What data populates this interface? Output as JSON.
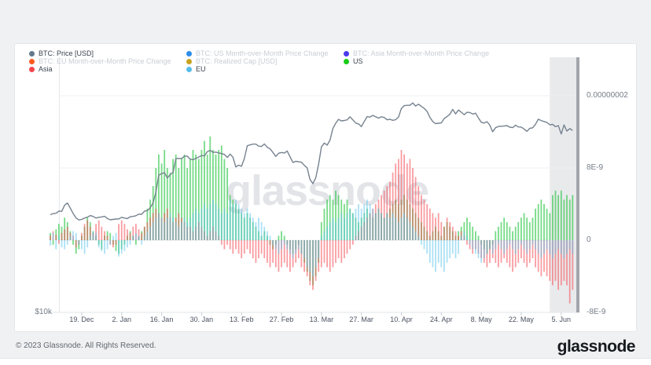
{
  "watermark": "glassnode",
  "footer": {
    "copyright": "© 2023 Glassnode. All Rights Reserved.",
    "brand": "glassnode"
  },
  "legend": {
    "items": [
      {
        "id": "btc-price",
        "label": "BTC: Price [USD]",
        "color": "#64788C",
        "active": true,
        "col": 0,
        "row": 0
      },
      {
        "id": "btc-us-mom",
        "label": "BTC: US Month-over-Month Price Change",
        "color": "#2E8DE8",
        "active": false,
        "col": 1,
        "row": 0
      },
      {
        "id": "btc-asia-mom",
        "label": "BTC: Asia Month-over-Month Price Change",
        "color": "#4A3AEE",
        "active": false,
        "col": 2,
        "row": 0
      },
      {
        "id": "btc-eu-mom",
        "label": "BTC: EU Month-over-Month Price Change",
        "color": "#FF5A1F",
        "active": false,
        "col": 0,
        "row": 1
      },
      {
        "id": "btc-realized-cap",
        "label": "BTC: Realized Cap [USD]",
        "color": "#C7A322",
        "active": false,
        "col": 1,
        "row": 1
      },
      {
        "id": "us",
        "label": "US",
        "color": "#17CC17",
        "active": true,
        "col": 2,
        "row": 1
      },
      {
        "id": "asia",
        "label": "Asia",
        "color": "#F4454D",
        "active": true,
        "col": 0,
        "row": 2
      },
      {
        "id": "eu",
        "label": "EU",
        "color": "#55BEEA",
        "active": true,
        "col": 1,
        "row": 2
      }
    ]
  },
  "chart_data": {
    "type": "mixed",
    "title": "",
    "start_date": "2022-12-08",
    "x_ticks": [
      {
        "label": "19. Dec",
        "day": 11
      },
      {
        "label": "2. Jan",
        "day": 25
      },
      {
        "label": "16. Jan",
        "day": 39
      },
      {
        "label": "30. Jan",
        "day": 53
      },
      {
        "label": "13. Feb",
        "day": 67
      },
      {
        "label": "27. Feb",
        "day": 81
      },
      {
        "label": "13. Mar",
        "day": 95
      },
      {
        "label": "27. Mar",
        "day": 109
      },
      {
        "label": "10. Apr",
        "day": 123
      },
      {
        "label": "24. Apr",
        "day": 137
      },
      {
        "label": "8. May",
        "day": 151
      },
      {
        "label": "22. May",
        "day": 165
      },
      {
        "label": "5. Jun",
        "day": 179
      }
    ],
    "right_axis": {
      "title": "Month-over-Month Price Change",
      "unit": "1e-9",
      "labels": [
        {
          "text": "0.00000002",
          "value_e9": 16
        },
        {
          "text": "8E-9",
          "value_e9": 8
        },
        {
          "text": "0",
          "value_e9": 0
        },
        {
          "text": "-8E-9",
          "value_e9": -8
        }
      ]
    },
    "left_axis": {
      "title": "BTC Price",
      "scale": "log",
      "labels": [
        {
          "text": "$10k",
          "value_usd": 10000
        }
      ]
    },
    "highlight": {
      "from_day": 175,
      "to_day": 184
    },
    "price_line": {
      "name": "BTC: Price [USD]",
      "color": "#76828F",
      "unit": "kUSD",
      "points": [
        [
          0,
          16.95
        ],
        [
          2,
          17.1
        ],
        [
          4,
          17.25
        ],
        [
          5,
          17.85
        ],
        [
          6,
          18.0
        ],
        [
          7,
          17.55
        ],
        [
          8,
          17.1
        ],
        [
          9,
          16.65
        ],
        [
          10,
          16.5
        ],
        [
          11,
          16.5
        ],
        [
          12,
          16.65
        ],
        [
          13,
          16.75
        ],
        [
          15,
          16.8
        ],
        [
          17,
          16.7
        ],
        [
          19,
          16.85
        ],
        [
          20,
          16.6
        ],
        [
          22,
          16.5
        ],
        [
          24,
          16.6
        ],
        [
          26,
          16.65
        ],
        [
          28,
          16.75
        ],
        [
          30,
          16.9
        ],
        [
          32,
          17.0
        ],
        [
          34,
          17.3
        ],
        [
          36,
          18.0
        ],
        [
          37,
          19.1
        ],
        [
          38,
          20.9
        ],
        [
          39,
          21.0
        ],
        [
          40,
          21.15
        ],
        [
          41,
          20.6
        ],
        [
          42,
          20.9
        ],
        [
          43,
          21.2
        ],
        [
          44,
          22.7
        ],
        [
          46,
          22.8
        ],
        [
          48,
          23.05
        ],
        [
          50,
          22.6
        ],
        [
          52,
          23.0
        ],
        [
          54,
          23.1
        ],
        [
          56,
          23.75
        ],
        [
          58,
          23.5
        ],
        [
          60,
          23.4
        ],
        [
          62,
          22.9
        ],
        [
          63,
          23.35
        ],
        [
          64,
          22.9
        ],
        [
          65,
          21.8
        ],
        [
          67,
          21.85
        ],
        [
          68,
          22.8
        ],
        [
          69,
          24.3
        ],
        [
          71,
          24.6
        ],
        [
          73,
          24.3
        ],
        [
          75,
          24.55
        ],
        [
          77,
          23.9
        ],
        [
          79,
          23.05
        ],
        [
          81,
          23.5
        ],
        [
          83,
          23.65
        ],
        [
          85,
          22.35
        ],
        [
          87,
          22.4
        ],
        [
          89,
          21.95
        ],
        [
          90,
          21.7
        ],
        [
          91,
          20.35
        ],
        [
          92,
          19.95
        ],
        [
          93,
          20.6
        ],
        [
          94,
          22.05
        ],
        [
          95,
          24.2
        ],
        [
          96,
          24.75
        ],
        [
          97,
          24.4
        ],
        [
          98,
          25.1
        ],
        [
          99,
          26.6
        ],
        [
          100,
          27.4
        ],
        [
          101,
          28.0
        ],
        [
          102,
          27.7
        ],
        [
          103,
          27.8
        ],
        [
          105,
          28.3
        ],
        [
          106,
          27.9
        ],
        [
          107,
          27.5
        ],
        [
          109,
          26.95
        ],
        [
          110,
          27.6
        ],
        [
          111,
          28.35
        ],
        [
          113,
          28.5
        ],
        [
          115,
          28.2
        ],
        [
          117,
          28.25
        ],
        [
          119,
          27.95
        ],
        [
          121,
          27.85
        ],
        [
          122,
          28.3
        ],
        [
          123,
          29.65
        ],
        [
          125,
          30.1
        ],
        [
          127,
          30.45
        ],
        [
          128,
          30.0
        ],
        [
          129,
          30.35
        ],
        [
          130,
          29.9
        ],
        [
          131,
          29.65
        ],
        [
          133,
          28.25
        ],
        [
          135,
          27.3
        ],
        [
          137,
          27.5
        ],
        [
          139,
          28.4
        ],
        [
          141,
          29.45
        ],
        [
          142,
          28.8
        ],
        [
          143,
          29.3
        ],
        [
          145,
          28.7
        ],
        [
          147,
          29.0
        ],
        [
          149,
          28.85
        ],
        [
          151,
          27.6
        ],
        [
          152,
          27.4
        ],
        [
          153,
          27.65
        ],
        [
          155,
          26.2
        ],
        [
          156,
          26.8
        ],
        [
          157,
          26.9
        ],
        [
          159,
          27.05
        ],
        [
          161,
          26.85
        ],
        [
          163,
          27.1
        ],
        [
          165,
          26.8
        ],
        [
          167,
          26.3
        ],
        [
          169,
          26.75
        ],
        [
          170,
          27.3
        ],
        [
          171,
          27.95
        ],
        [
          173,
          27.7
        ],
        [
          175,
          27.2
        ],
        [
          177,
          26.9
        ],
        [
          178,
          27.1
        ],
        [
          179,
          25.85
        ],
        [
          180,
          27.15
        ],
        [
          181,
          26.35
        ],
        [
          182,
          26.6
        ],
        [
          183,
          26.4
        ]
      ]
    },
    "bar_series": [
      {
        "id": "us",
        "name": "US",
        "color": "rgba(34,197,62,0.62)",
        "values": [
          0.8,
          -0.5,
          1.2,
          1.8,
          1.5,
          2.5,
          2,
          1,
          -0.5,
          -1.5,
          -1,
          0.5,
          1.5,
          2.5,
          2,
          1,
          0.5,
          -0.5,
          -1,
          0.5,
          1,
          0.8,
          -0.5,
          -1.2,
          -1.5,
          -1,
          -0.5,
          0.5,
          1,
          0.5,
          -0.5,
          0.5,
          1,
          1.5,
          3.5,
          4.5,
          6,
          8,
          9.5,
          8.5,
          10,
          8,
          7.5,
          9,
          9.5,
          8,
          9,
          9.5,
          8,
          9,
          10,
          9.5,
          9,
          10,
          11,
          9.5,
          11.5,
          10,
          9.5,
          10,
          10.5,
          9,
          8,
          5,
          4.5,
          4,
          3.5,
          3,
          2.5,
          3,
          2.5,
          2,
          1.5,
          1,
          0.5,
          1,
          0.5,
          -0.5,
          -1,
          -0.5,
          0.5,
          1,
          0.5,
          -0.5,
          -1,
          -1.5,
          -1,
          -0.5,
          -1.5,
          -2.5,
          -3.5,
          -4.5,
          -5,
          -4,
          -2.5,
          2,
          3.5,
          4.5,
          5,
          4.5,
          5.5,
          5,
          4.5,
          4,
          4.5,
          3.5,
          3,
          2.5,
          2,
          2.5,
          3,
          3.5,
          3,
          2.5,
          3,
          3.5,
          3,
          2.5,
          3,
          3.5,
          4,
          4.5,
          4,
          4.5,
          5,
          4.5,
          4,
          3.5,
          3,
          2.5,
          2,
          1.5,
          1,
          0.5,
          1,
          1.5,
          1,
          0.5,
          1.5,
          2,
          1.5,
          1,
          0.5,
          1,
          1.5,
          2,
          2.5,
          2,
          1.5,
          1,
          0.5,
          -0.5,
          -1,
          -1.5,
          -1,
          -0.5,
          1,
          1.5,
          2,
          2.5,
          2,
          1.5,
          1,
          1.5,
          2,
          2.5,
          3,
          2.5,
          2,
          2.5,
          3.5,
          4,
          4.5,
          4,
          3.5,
          3,
          5,
          5.5,
          5,
          5.5,
          4.5,
          5,
          4.5,
          5
        ]
      },
      {
        "id": "asia",
        "name": "Asia",
        "color": "rgba(246,74,84,0.55)",
        "values": [
          0.5,
          1,
          0.6,
          -0.4,
          0.8,
          1.2,
          1.5,
          0.8,
          0.5,
          -0.8,
          -0.5,
          0.8,
          1.8,
          2.2,
          1.5,
          0.8,
          1.8,
          2.2,
          1.5,
          1,
          0.5,
          -0.5,
          -0.8,
          -0.5,
          1.8,
          2.2,
          1.8,
          1.2,
          0.8,
          1.5,
          1.8,
          1.2,
          0.8,
          1.5,
          2,
          2.5,
          3,
          3.5,
          3,
          2.5,
          3,
          3.5,
          2.5,
          2,
          2.5,
          3,
          2.5,
          2,
          1.5,
          1.5,
          1,
          1.5,
          2,
          1.5,
          1,
          0.5,
          1,
          1.5,
          1,
          0.5,
          -0.5,
          -1,
          -0.5,
          -1,
          -1.5,
          -1,
          -1.5,
          -2,
          -1.5,
          -1,
          -1.5,
          -2,
          -2.5,
          -2,
          -1.5,
          -2,
          -2.5,
          -3,
          -2.5,
          -3,
          -3.5,
          -3,
          -2.5,
          -3,
          -3.5,
          -3,
          -2.5,
          -2,
          -3,
          -3.5,
          -4,
          -5,
          -5.5,
          -4.5,
          -3.5,
          -3,
          -2.5,
          -3,
          -3.5,
          -3,
          -2.5,
          -2,
          -2.5,
          -2,
          -1.5,
          -1,
          -0.5,
          0.5,
          1,
          1.5,
          2,
          2.5,
          3,
          3.5,
          4,
          4.5,
          5,
          5.5,
          6,
          6.5,
          7.5,
          8.5,
          9,
          10,
          9.5,
          8.5,
          9,
          8,
          7,
          6,
          5,
          4.5,
          4,
          3.5,
          3,
          2.5,
          3,
          2,
          1.5,
          2.5,
          2,
          1.5,
          1,
          0.5,
          1,
          0.5,
          -0.5,
          -1,
          -1.5,
          -1,
          -1.5,
          -2,
          -2.5,
          -3,
          -2.5,
          -2,
          -2.5,
          -3,
          -2.5,
          -2,
          -2.5,
          -3,
          -3.5,
          -3,
          -2.5,
          -2,
          -2.5,
          -3,
          -2.5,
          -2,
          -3,
          -3.5,
          -4,
          -3.5,
          -4,
          -4.5,
          -5,
          -4.5,
          -5.5,
          -5,
          -4.5,
          -5,
          -7,
          -5.5
        ]
      },
      {
        "id": "eu",
        "name": "EU",
        "color": "rgba(88,194,235,0.5)",
        "values": [
          -0.6,
          0.8,
          -1,
          0.5,
          -0.8,
          -1,
          -0.5,
          0.5,
          1,
          0.8,
          -0.5,
          -1,
          -1.5,
          -0.8,
          0.5,
          1,
          0.8,
          -0.8,
          -1.2,
          -1.5,
          -1,
          -0.5,
          0.5,
          0.8,
          -1.8,
          -1.5,
          -1.2,
          -0.8,
          -0.5,
          0.5,
          0.8,
          0.5,
          -0.5,
          0.5,
          1,
          1.5,
          2,
          2.5,
          3,
          2.5,
          2,
          2.5,
          3,
          2.5,
          2,
          1.5,
          2,
          2.5,
          2,
          2.5,
          3,
          3.5,
          3,
          3.5,
          4,
          3.5,
          4,
          4.5,
          4,
          3.5,
          3,
          3.5,
          3,
          4.5,
          4,
          4.5,
          4,
          3.5,
          3,
          3.5,
          3,
          2.5,
          2,
          2.5,
          2,
          1.5,
          1,
          0.5,
          -0.5,
          -1,
          -1.5,
          -1,
          -0.5,
          -1,
          -1.5,
          -2,
          -1.5,
          -1,
          -1.5,
          -2,
          -3,
          -3.5,
          -4,
          -3,
          -2,
          0.5,
          1,
          1.5,
          2,
          2.5,
          2,
          2.5,
          3,
          2.5,
          3,
          3.5,
          3,
          3.5,
          4,
          3.5,
          4,
          4.5,
          4,
          3.5,
          3,
          3.5,
          3,
          2.5,
          3,
          2.5,
          3,
          2.5,
          2,
          2.5,
          3,
          2.5,
          2,
          1.5,
          1,
          0.5,
          -0.5,
          -1,
          -1.5,
          -2.5,
          -3,
          -3.5,
          -2.5,
          -3,
          -3.5,
          -2.5,
          -2,
          -1.5,
          -2,
          -1.5,
          0.5,
          1,
          0.5,
          -0.5,
          -1,
          -1.5,
          -2,
          -2.5,
          -2,
          -1.5,
          -1,
          -1.5,
          -1,
          -0.5,
          -1,
          -1.5,
          -1,
          -0.5,
          -1,
          -1.5,
          -1,
          -0.5,
          -1,
          -1.5,
          -1,
          -0.5,
          -1,
          -1.5,
          -2,
          -1.5,
          -1,
          -1.5,
          -2,
          -1.5,
          -1,
          -1.5,
          -2,
          -1.5,
          -1,
          -1.5
        ]
      }
    ]
  }
}
